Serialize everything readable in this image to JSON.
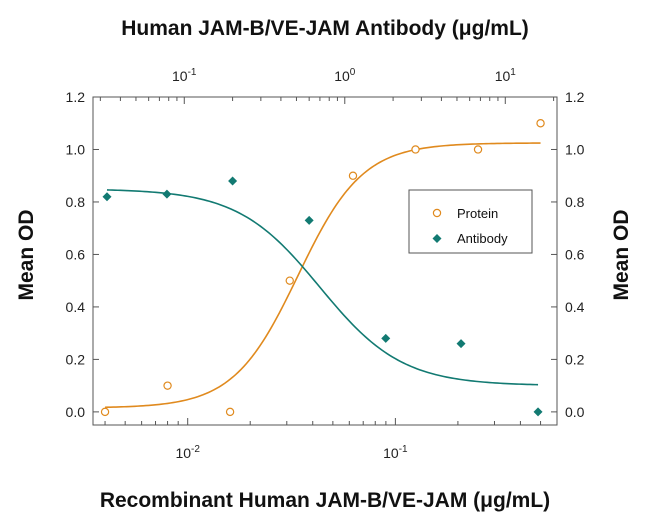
{
  "chart_data": {
    "type": "scatter",
    "title": "Human JAM-B/VE-JAM Antibody (μg/mL)",
    "xlabel": "Recombinant Human JAM-B/VE-JAM (μg/mL)",
    "ylabel": "Mean OD",
    "ylabel_right": "Mean OD",
    "x_scale": "log",
    "x_top_scale": "log",
    "xlim_bottom": [
      0.0035,
      0.6
    ],
    "xlim_top": [
      0.027,
      21
    ],
    "ylim": [
      -0.05,
      1.2
    ],
    "y_ticks": [
      "0.0",
      "0.2",
      "0.4",
      "0.6",
      "0.8",
      "1.0",
      "1.2"
    ],
    "y_tick_values": [
      0.0,
      0.2,
      0.4,
      0.6,
      0.8,
      1.0,
      1.2
    ],
    "x_bottom_ticks": [
      {
        "value": 0.01,
        "base": "10",
        "exp": "-2"
      },
      {
        "value": 0.1,
        "base": "10",
        "exp": "-1"
      }
    ],
    "x_top_ticks": [
      {
        "value": 0.1,
        "base": "10",
        "exp": "-1"
      },
      {
        "value": 1,
        "base": "10",
        "exp": "0"
      },
      {
        "value": 10,
        "base": "10",
        "exp": "1"
      }
    ],
    "legend_position": "center-right",
    "series": [
      {
        "name": "Protein",
        "axis": "bottom",
        "marker": "open-circle",
        "color": "#E08A1E",
        "x": [
          0.004,
          0.008,
          0.016,
          0.031,
          0.0625,
          0.125,
          0.25,
          0.5
        ],
        "y": [
          0.0,
          0.1,
          0.0,
          0.5,
          0.9,
          1.0,
          1.0,
          1.1
        ],
        "fit": {
          "bottom": 0.015,
          "top": 1.025,
          "ec50": 0.034,
          "hill": 2.8
        }
      },
      {
        "name": "Antibody",
        "axis": "top",
        "marker": "filled-diamond",
        "color": "#127A72",
        "x": [
          0.033,
          0.078,
          0.2,
          0.6,
          1.8,
          5.3,
          16
        ],
        "y": [
          0.82,
          0.83,
          0.88,
          0.73,
          0.28,
          0.26,
          0.0
        ],
        "fit": {
          "bottom": 0.1,
          "top": 0.85,
          "ec50": 0.7,
          "hill": 1.7
        }
      }
    ]
  }
}
